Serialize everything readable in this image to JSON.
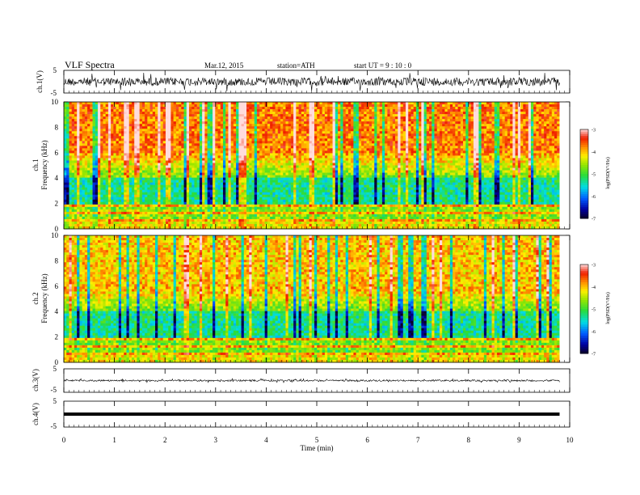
{
  "header": {
    "title": "VLF  Spectra",
    "date": "Mar.12, 2015",
    "station": "station=ATH",
    "start": "start  UT  =   9  : 10 : 0"
  },
  "chart_data": [
    {
      "type": "line",
      "panel": "ch1-waveform",
      "ylabel": "ch.1(V)",
      "ylim": [
        -5,
        5
      ],
      "ticks": [
        "5",
        "-5"
      ],
      "xlim": [
        0,
        10
      ],
      "data_end_min": 9.8
    },
    {
      "type": "heatmap",
      "panel": "ch1-spectrogram",
      "ylabel_line1": "ch.1",
      "ylabel_line2": "Frequency  (kHz)",
      "ylim": [
        0,
        10
      ],
      "yticks": [
        "0",
        "2",
        "4",
        "6",
        "8",
        "10"
      ],
      "xlim": [
        0,
        10
      ],
      "data_end_min": 9.8,
      "colorbar": {
        "label": "log(PSD(V²/Hz)",
        "range": [
          -7,
          -3
        ],
        "ticks": [
          "-3",
          "-4",
          "-5",
          "-6",
          "-7"
        ]
      }
    },
    {
      "type": "heatmap",
      "panel": "ch2-spectrogram",
      "ylabel_line1": "ch.2",
      "ylabel_line2": "Frequency  (kHz)",
      "ylim": [
        0,
        10
      ],
      "yticks": [
        "0",
        "2",
        "4",
        "6",
        "8",
        "10"
      ],
      "xlim": [
        0,
        10
      ],
      "data_end_min": 9.8,
      "colorbar": {
        "label": "log(PSD(V²/Hz)",
        "range": [
          -7,
          -3
        ],
        "ticks": [
          "-3",
          "-4",
          "-5",
          "-6",
          "-7"
        ]
      }
    },
    {
      "type": "line",
      "panel": "ch3-waveform",
      "ylabel": "ch.3(V)",
      "ylim": [
        -5,
        5
      ],
      "ticks": [
        "5",
        "-5"
      ],
      "xlim": [
        0,
        10
      ],
      "data_end_min": 9.8
    },
    {
      "type": "line",
      "panel": "ch4-waveform",
      "ylabel": "ch.4(V)",
      "ylim": [
        -5,
        5
      ],
      "ticks": [
        "5",
        "-5"
      ],
      "xlim": [
        0,
        10
      ],
      "data_end_min": 9.8
    }
  ],
  "xaxis": {
    "label": "Time  (min)",
    "ticks": [
      "0",
      "1",
      "2",
      "3",
      "4",
      "5",
      "6",
      "7",
      "8",
      "9",
      "10"
    ]
  }
}
